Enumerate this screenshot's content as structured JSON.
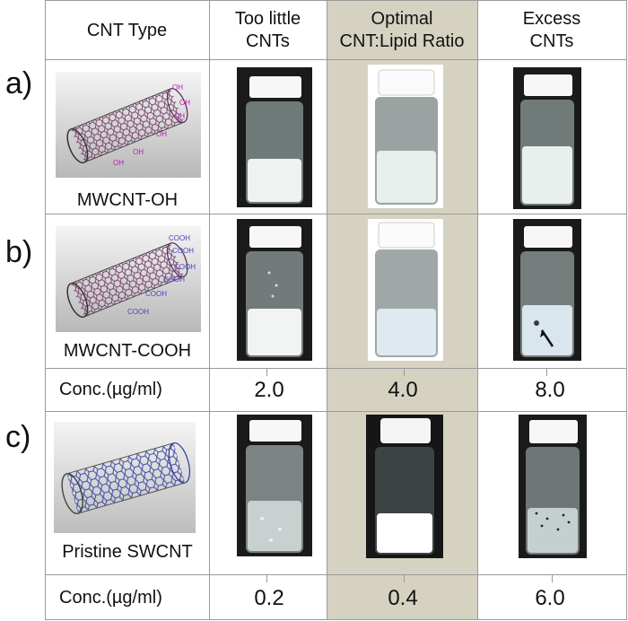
{
  "header": {
    "cnt_type": "CNT Type",
    "col1_line1": "Too little",
    "col1_line2": "CNTs",
    "col2_line1": "Optimal",
    "col2_line2": "CNT:Lipid Ratio",
    "col3_line1": "Excess",
    "col3_line2": "CNTs"
  },
  "rows": {
    "a_label": "a)",
    "b_label": "b)",
    "c_label": "c)",
    "a_name": "MWCNT-OH",
    "b_name": "MWCNT-COOH",
    "c_name": "Pristine SWCNT",
    "a_group": "OH",
    "b_group": "COOH"
  },
  "conc_label": "Conc.(µg/ml)",
  "conc_row1": [
    "2.0",
    "4.0",
    "8.0"
  ],
  "conc_row2": [
    "0.2",
    "0.4",
    "6.0"
  ],
  "colors": {
    "optimal_shade": "#d6d2c1",
    "grid": "#9a9a9a",
    "mw_tube": "#7a3a6a",
    "sw_tube": "#2b3a9a",
    "group_label": "#b21fb2"
  }
}
